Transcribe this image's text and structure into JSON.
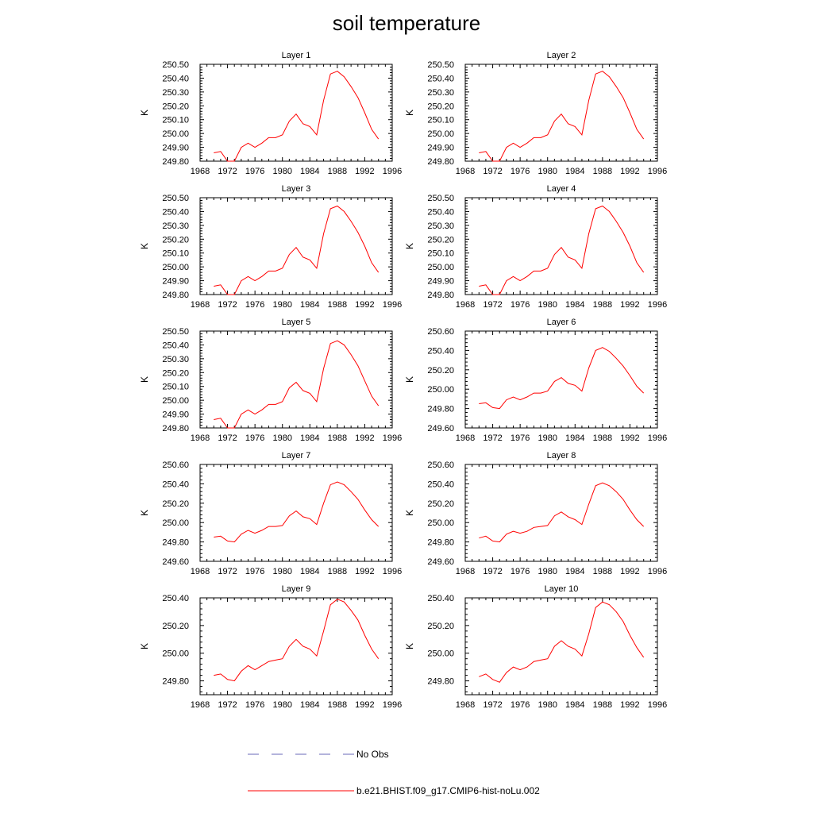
{
  "title": "soil temperature",
  "legend": {
    "position": "bottom-center",
    "entries": [
      {
        "label": "No Obs",
        "color": "#6a6ab8",
        "style": "dashed"
      },
      {
        "label": "b.e21.BHIST.f09_g17.CMIP6-hist-noLu.002",
        "color": "#ff0000",
        "style": "solid"
      }
    ]
  },
  "chart_data": [
    {
      "type": "line",
      "title": "Layer 1",
      "ylabel": "K",
      "xlim": [
        1968,
        1996
      ],
      "ylim": [
        249.8,
        250.5
      ],
      "xticks": [
        "1968",
        "1972",
        "1976",
        "1980",
        "1984",
        "1988",
        "1992",
        "1996"
      ],
      "yticks": [
        "249.80",
        "249.90",
        "250.00",
        "250.10",
        "250.20",
        "250.30",
        "250.40",
        "250.50"
      ],
      "x": [
        1970,
        1971,
        1972,
        1973,
        1974,
        1975,
        1976,
        1977,
        1978,
        1979,
        1980,
        1981,
        1982,
        1983,
        1984,
        1985,
        1986,
        1987,
        1988,
        1989,
        1990,
        1991,
        1992,
        1993,
        1994
      ],
      "series": [
        {
          "name": "b.e21.BHIST.f09_g17.CMIP6-hist-noLu.002",
          "color": "#ff0000",
          "values": [
            249.86,
            249.87,
            249.8,
            249.8,
            249.9,
            249.93,
            249.9,
            249.93,
            249.97,
            249.97,
            249.99,
            250.09,
            250.14,
            250.07,
            250.05,
            249.99,
            250.24,
            250.43,
            250.45,
            250.41,
            250.34,
            250.26,
            250.15,
            250.03,
            249.96
          ]
        }
      ]
    },
    {
      "type": "line",
      "title": "Layer 2",
      "ylabel": "K",
      "xlim": [
        1968,
        1996
      ],
      "ylim": [
        249.8,
        250.5
      ],
      "xticks": [
        "1968",
        "1972",
        "1976",
        "1980",
        "1984",
        "1988",
        "1992",
        "1996"
      ],
      "yticks": [
        "249.80",
        "249.90",
        "250.00",
        "250.10",
        "250.20",
        "250.30",
        "250.40",
        "250.50"
      ],
      "x": [
        1970,
        1971,
        1972,
        1973,
        1974,
        1975,
        1976,
        1977,
        1978,
        1979,
        1980,
        1981,
        1982,
        1983,
        1984,
        1985,
        1986,
        1987,
        1988,
        1989,
        1990,
        1991,
        1992,
        1993,
        1994
      ],
      "series": [
        {
          "name": "b.e21.BHIST.f09_g17.CMIP6-hist-noLu.002",
          "color": "#ff0000",
          "values": [
            249.86,
            249.87,
            249.8,
            249.8,
            249.9,
            249.93,
            249.9,
            249.93,
            249.97,
            249.97,
            249.99,
            250.09,
            250.14,
            250.07,
            250.05,
            249.99,
            250.24,
            250.43,
            250.45,
            250.41,
            250.34,
            250.26,
            250.15,
            250.03,
            249.96
          ]
        }
      ]
    },
    {
      "type": "line",
      "title": "Layer 3",
      "ylabel": "K",
      "xlim": [
        1968,
        1996
      ],
      "ylim": [
        249.8,
        250.5
      ],
      "xticks": [
        "1968",
        "1972",
        "1976",
        "1980",
        "1984",
        "1988",
        "1992",
        "1996"
      ],
      "yticks": [
        "249.80",
        "249.90",
        "250.00",
        "250.10",
        "250.20",
        "250.30",
        "250.40",
        "250.50"
      ],
      "x": [
        1970,
        1971,
        1972,
        1973,
        1974,
        1975,
        1976,
        1977,
        1978,
        1979,
        1980,
        1981,
        1982,
        1983,
        1984,
        1985,
        1986,
        1987,
        1988,
        1989,
        1990,
        1991,
        1992,
        1993,
        1994
      ],
      "series": [
        {
          "name": "b.e21.BHIST.f09_g17.CMIP6-hist-noLu.002",
          "color": "#ff0000",
          "values": [
            249.86,
            249.87,
            249.8,
            249.8,
            249.9,
            249.93,
            249.9,
            249.93,
            249.97,
            249.97,
            249.99,
            250.09,
            250.14,
            250.07,
            250.05,
            249.99,
            250.24,
            250.42,
            250.44,
            250.4,
            250.33,
            250.25,
            250.15,
            250.03,
            249.96
          ]
        }
      ]
    },
    {
      "type": "line",
      "title": "Layer 4",
      "ylabel": "K",
      "xlim": [
        1968,
        1996
      ],
      "ylim": [
        249.8,
        250.5
      ],
      "xticks": [
        "1968",
        "1972",
        "1976",
        "1980",
        "1984",
        "1988",
        "1992",
        "1996"
      ],
      "yticks": [
        "249.80",
        "249.90",
        "250.00",
        "250.10",
        "250.20",
        "250.30",
        "250.40",
        "250.50"
      ],
      "x": [
        1970,
        1971,
        1972,
        1973,
        1974,
        1975,
        1976,
        1977,
        1978,
        1979,
        1980,
        1981,
        1982,
        1983,
        1984,
        1985,
        1986,
        1987,
        1988,
        1989,
        1990,
        1991,
        1992,
        1993,
        1994
      ],
      "series": [
        {
          "name": "b.e21.BHIST.f09_g17.CMIP6-hist-noLu.002",
          "color": "#ff0000",
          "values": [
            249.86,
            249.87,
            249.8,
            249.8,
            249.9,
            249.93,
            249.9,
            249.93,
            249.97,
            249.97,
            249.99,
            250.09,
            250.14,
            250.07,
            250.05,
            249.99,
            250.24,
            250.42,
            250.44,
            250.4,
            250.33,
            250.25,
            250.15,
            250.03,
            249.96
          ]
        }
      ]
    },
    {
      "type": "line",
      "title": "Layer 5",
      "ylabel": "K",
      "xlim": [
        1968,
        1996
      ],
      "ylim": [
        249.8,
        250.5
      ],
      "xticks": [
        "1968",
        "1972",
        "1976",
        "1980",
        "1984",
        "1988",
        "1992",
        "1996"
      ],
      "yticks": [
        "249.80",
        "249.90",
        "250.00",
        "250.10",
        "250.20",
        "250.30",
        "250.40",
        "250.50"
      ],
      "x": [
        1970,
        1971,
        1972,
        1973,
        1974,
        1975,
        1976,
        1977,
        1978,
        1979,
        1980,
        1981,
        1982,
        1983,
        1984,
        1985,
        1986,
        1987,
        1988,
        1989,
        1990,
        1991,
        1992,
        1993,
        1994
      ],
      "series": [
        {
          "name": "b.e21.BHIST.f09_g17.CMIP6-hist-noLu.002",
          "color": "#ff0000",
          "values": [
            249.86,
            249.87,
            249.8,
            249.8,
            249.9,
            249.93,
            249.9,
            249.93,
            249.97,
            249.97,
            249.99,
            250.09,
            250.13,
            250.07,
            250.05,
            249.99,
            250.23,
            250.41,
            250.43,
            250.4,
            250.33,
            250.25,
            250.14,
            250.03,
            249.96
          ]
        }
      ]
    },
    {
      "type": "line",
      "title": "Layer 6",
      "ylabel": "K",
      "xlim": [
        1968,
        1996
      ],
      "ylim": [
        249.6,
        250.6
      ],
      "xticks": [
        "1968",
        "1972",
        "1976",
        "1980",
        "1984",
        "1988",
        "1992",
        "1996"
      ],
      "yticks": [
        "249.60",
        "249.80",
        "250.00",
        "250.20",
        "250.40",
        "250.60"
      ],
      "x": [
        1970,
        1971,
        1972,
        1973,
        1974,
        1975,
        1976,
        1977,
        1978,
        1979,
        1980,
        1981,
        1982,
        1983,
        1984,
        1985,
        1986,
        1987,
        1988,
        1989,
        1990,
        1991,
        1992,
        1993,
        1994
      ],
      "series": [
        {
          "name": "b.e21.BHIST.f09_g17.CMIP6-hist-noLu.002",
          "color": "#ff0000",
          "values": [
            249.85,
            249.86,
            249.81,
            249.8,
            249.89,
            249.92,
            249.89,
            249.92,
            249.96,
            249.96,
            249.98,
            250.08,
            250.12,
            250.06,
            250.04,
            249.98,
            250.22,
            250.4,
            250.43,
            250.39,
            250.32,
            250.24,
            250.14,
            250.03,
            249.96
          ]
        }
      ]
    },
    {
      "type": "line",
      "title": "Layer 7",
      "ylabel": "K",
      "xlim": [
        1968,
        1996
      ],
      "ylim": [
        249.6,
        250.6
      ],
      "xticks": [
        "1968",
        "1972",
        "1976",
        "1980",
        "1984",
        "1988",
        "1992",
        "1996"
      ],
      "yticks": [
        "249.60",
        "249.80",
        "250.00",
        "250.20",
        "250.40",
        "250.60"
      ],
      "x": [
        1970,
        1971,
        1972,
        1973,
        1974,
        1975,
        1976,
        1977,
        1978,
        1979,
        1980,
        1981,
        1982,
        1983,
        1984,
        1985,
        1986,
        1987,
        1988,
        1989,
        1990,
        1991,
        1992,
        1993,
        1994
      ],
      "series": [
        {
          "name": "b.e21.BHIST.f09_g17.CMIP6-hist-noLu.002",
          "color": "#ff0000",
          "values": [
            249.85,
            249.86,
            249.81,
            249.8,
            249.88,
            249.92,
            249.89,
            249.92,
            249.96,
            249.96,
            249.97,
            250.07,
            250.12,
            250.06,
            250.04,
            249.98,
            250.2,
            250.39,
            250.42,
            250.39,
            250.32,
            250.24,
            250.13,
            250.03,
            249.96
          ]
        }
      ]
    },
    {
      "type": "line",
      "title": "Layer 8",
      "ylabel": "K",
      "xlim": [
        1968,
        1996
      ],
      "ylim": [
        249.6,
        250.6
      ],
      "xticks": [
        "1968",
        "1972",
        "1976",
        "1980",
        "1984",
        "1988",
        "1992",
        "1996"
      ],
      "yticks": [
        "249.60",
        "249.80",
        "250.00",
        "250.20",
        "250.40",
        "250.60"
      ],
      "x": [
        1970,
        1971,
        1972,
        1973,
        1974,
        1975,
        1976,
        1977,
        1978,
        1979,
        1980,
        1981,
        1982,
        1983,
        1984,
        1985,
        1986,
        1987,
        1988,
        1989,
        1990,
        1991,
        1992,
        1993,
        1994
      ],
      "series": [
        {
          "name": "b.e21.BHIST.f09_g17.CMIP6-hist-noLu.002",
          "color": "#ff0000",
          "values": [
            249.84,
            249.86,
            249.81,
            249.8,
            249.88,
            249.91,
            249.89,
            249.91,
            249.95,
            249.96,
            249.97,
            250.07,
            250.11,
            250.06,
            250.03,
            249.98,
            250.19,
            250.38,
            250.41,
            250.38,
            250.32,
            250.24,
            250.13,
            250.03,
            249.96
          ]
        }
      ]
    },
    {
      "type": "line",
      "title": "Layer 9",
      "ylabel": "K",
      "xlim": [
        1968,
        1996
      ],
      "ylim": [
        249.7,
        250.4
      ],
      "xticks": [
        "1968",
        "1972",
        "1976",
        "1980",
        "1984",
        "1988",
        "1992",
        "1996"
      ],
      "yticks": [
        "249.80",
        "250.00",
        "250.20",
        "250.40"
      ],
      "x": [
        1970,
        1971,
        1972,
        1973,
        1974,
        1975,
        1976,
        1977,
        1978,
        1979,
        1980,
        1981,
        1982,
        1983,
        1984,
        1985,
        1986,
        1987,
        1988,
        1989,
        1990,
        1991,
        1992,
        1993,
        1994
      ],
      "series": [
        {
          "name": "b.e21.BHIST.f09_g17.CMIP6-hist-noLu.002",
          "color": "#ff0000",
          "values": [
            249.84,
            249.85,
            249.81,
            249.8,
            249.87,
            249.91,
            249.88,
            249.91,
            249.94,
            249.95,
            249.96,
            250.05,
            250.1,
            250.05,
            250.03,
            249.98,
            250.16,
            250.35,
            250.39,
            250.37,
            250.31,
            250.24,
            250.13,
            250.03,
            249.96
          ]
        }
      ]
    },
    {
      "type": "line",
      "title": "Layer 10",
      "ylabel": "K",
      "xlim": [
        1968,
        1996
      ],
      "ylim": [
        249.7,
        250.4
      ],
      "xticks": [
        "1968",
        "1972",
        "1976",
        "1980",
        "1984",
        "1988",
        "1992",
        "1996"
      ],
      "yticks": [
        "249.80",
        "250.00",
        "250.20",
        "250.40"
      ],
      "x": [
        1970,
        1971,
        1972,
        1973,
        1974,
        1975,
        1976,
        1977,
        1978,
        1979,
        1980,
        1981,
        1982,
        1983,
        1984,
        1985,
        1986,
        1987,
        1988,
        1989,
        1990,
        1991,
        1992,
        1993,
        1994
      ],
      "series": [
        {
          "name": "b.e21.BHIST.f09_g17.CMIP6-hist-noLu.002",
          "color": "#ff0000",
          "values": [
            249.83,
            249.85,
            249.81,
            249.79,
            249.86,
            249.9,
            249.88,
            249.9,
            249.94,
            249.95,
            249.96,
            250.05,
            250.09,
            250.05,
            250.03,
            249.98,
            250.14,
            250.33,
            250.37,
            250.35,
            250.3,
            250.23,
            250.13,
            250.04,
            249.97
          ]
        }
      ]
    }
  ]
}
